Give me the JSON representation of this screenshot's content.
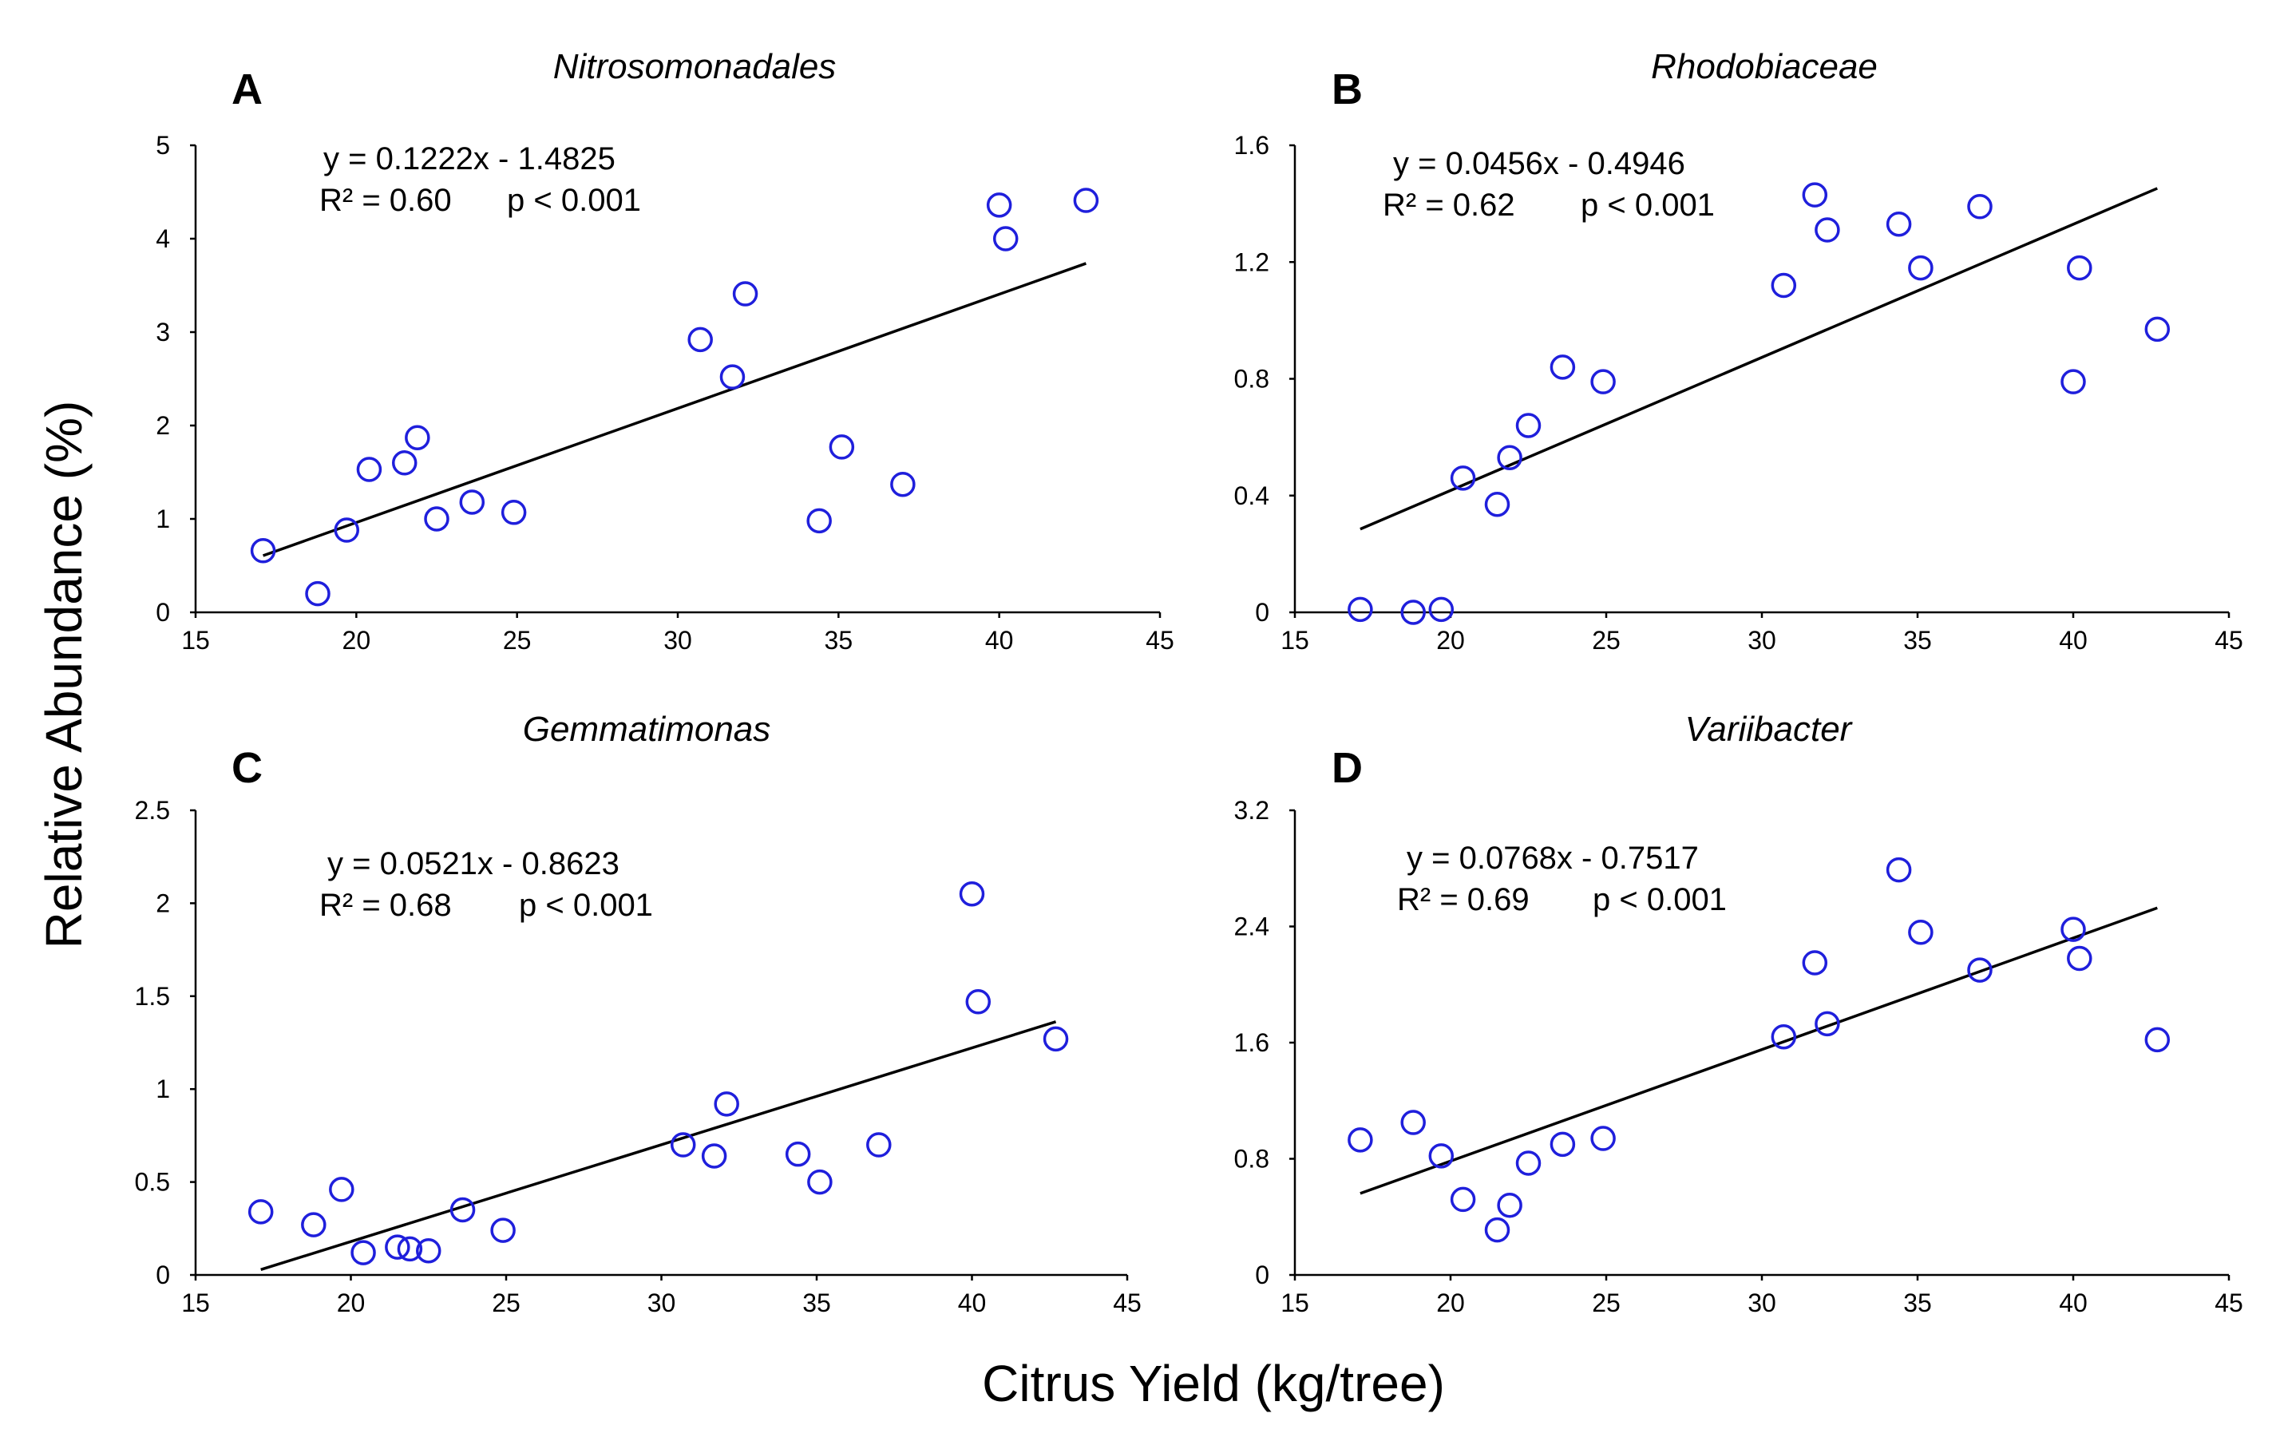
{
  "colors": {
    "marker": "#1f1fdc",
    "axis": "#000000",
    "fit_line": "#000000"
  },
  "shared_ylabel": "Relative Abundance (%)",
  "shared_xlabel": "Citrus Yield (kg/tree)",
  "chart_data": [
    {
      "type": "scatter",
      "panel": "A",
      "title": "Nitrosomonadales",
      "equation": "y = 0.1222x - 1.4825",
      "r2_text": "R² = 0.60",
      "p_text": "p < 0.001",
      "xlim": [
        15,
        45
      ],
      "ylim": [
        0,
        5
      ],
      "xticks": [
        15,
        20,
        25,
        30,
        35,
        40,
        45
      ],
      "yticks": [
        0,
        1,
        2,
        3,
        4,
        5
      ],
      "ytick_labels": [
        "0",
        "1",
        "2",
        "3",
        "4",
        "5"
      ],
      "fit": {
        "slope": 0.1222,
        "intercept": -1.4825,
        "x_range": [
          17.1,
          42.7
        ]
      },
      "points": [
        {
          "x": 17.1,
          "y": 0.66
        },
        {
          "x": 18.8,
          "y": 0.2
        },
        {
          "x": 19.7,
          "y": 0.88
        },
        {
          "x": 20.4,
          "y": 1.53
        },
        {
          "x": 21.5,
          "y": 1.6
        },
        {
          "x": 21.9,
          "y": 1.87
        },
        {
          "x": 22.5,
          "y": 1.0
        },
        {
          "x": 23.6,
          "y": 1.18
        },
        {
          "x": 24.9,
          "y": 1.07
        },
        {
          "x": 30.7,
          "y": 2.92
        },
        {
          "x": 31.7,
          "y": 2.52
        },
        {
          "x": 32.1,
          "y": 3.41
        },
        {
          "x": 34.4,
          "y": 0.98
        },
        {
          "x": 35.1,
          "y": 1.77
        },
        {
          "x": 37.0,
          "y": 1.37
        },
        {
          "x": 40.0,
          "y": 4.36
        },
        {
          "x": 40.2,
          "y": 4.0
        },
        {
          "x": 42.7,
          "y": 4.41
        }
      ]
    },
    {
      "type": "scatter",
      "panel": "B",
      "title": "Rhodobiaceae",
      "equation": "y = 0.0456x - 0.4946",
      "r2_text": "R² = 0.62",
      "p_text": "p < 0.001",
      "xlim": [
        15,
        45
      ],
      "ylim": [
        0,
        1.6
      ],
      "xticks": [
        15,
        20,
        25,
        30,
        35,
        40,
        45
      ],
      "yticks": [
        0,
        0.4,
        0.8,
        1.2,
        1.6
      ],
      "ytick_labels": [
        "0",
        "0.4",
        "0.8",
        "1.2",
        "1.6"
      ],
      "fit": {
        "slope": 0.0456,
        "intercept": -0.4946,
        "x_range": [
          17.1,
          42.7
        ]
      },
      "points": [
        {
          "x": 17.1,
          "y": 0.01
        },
        {
          "x": 18.8,
          "y": 0.0
        },
        {
          "x": 19.7,
          "y": 0.01
        },
        {
          "x": 20.4,
          "y": 0.46
        },
        {
          "x": 21.5,
          "y": 0.37
        },
        {
          "x": 21.9,
          "y": 0.53
        },
        {
          "x": 22.5,
          "y": 0.64
        },
        {
          "x": 23.6,
          "y": 0.84
        },
        {
          "x": 24.9,
          "y": 0.79
        },
        {
          "x": 30.7,
          "y": 1.12
        },
        {
          "x": 31.7,
          "y": 1.43
        },
        {
          "x": 32.1,
          "y": 1.31
        },
        {
          "x": 34.4,
          "y": 1.33
        },
        {
          "x": 35.1,
          "y": 1.18
        },
        {
          "x": 37.0,
          "y": 1.39
        },
        {
          "x": 40.0,
          "y": 0.79
        },
        {
          "x": 40.2,
          "y": 1.18
        },
        {
          "x": 42.7,
          "y": 0.97
        }
      ]
    },
    {
      "type": "scatter",
      "panel": "C",
      "title": "Gemmatimonas",
      "equation": "y = 0.0521x - 0.8623",
      "r2_text": "R² = 0.68",
      "p_text": "p < 0.001",
      "xlim": [
        15,
        45
      ],
      "ylim": [
        0,
        2.5
      ],
      "xticks": [
        15,
        20,
        25,
        30,
        35,
        40,
        45
      ],
      "yticks": [
        0,
        0.5,
        1,
        1.5,
        2,
        2.5
      ],
      "ytick_labels": [
        "0",
        "0.5",
        "1",
        "1.5",
        "2",
        "2.5"
      ],
      "fit": {
        "slope": 0.0521,
        "intercept": -0.8623,
        "x_range": [
          17.1,
          42.7
        ]
      },
      "points": [
        {
          "x": 17.1,
          "y": 0.34
        },
        {
          "x": 18.8,
          "y": 0.27
        },
        {
          "x": 19.7,
          "y": 0.46
        },
        {
          "x": 20.4,
          "y": 0.12
        },
        {
          "x": 21.5,
          "y": 0.15
        },
        {
          "x": 21.9,
          "y": 0.14
        },
        {
          "x": 22.5,
          "y": 0.13
        },
        {
          "x": 23.6,
          "y": 0.35
        },
        {
          "x": 24.9,
          "y": 0.24
        },
        {
          "x": 30.7,
          "y": 0.7
        },
        {
          "x": 31.7,
          "y": 0.64
        },
        {
          "x": 32.1,
          "y": 0.92
        },
        {
          "x": 34.4,
          "y": 0.65
        },
        {
          "x": 35.1,
          "y": 0.5
        },
        {
          "x": 37.0,
          "y": 0.7
        },
        {
          "x": 40.0,
          "y": 2.05
        },
        {
          "x": 40.2,
          "y": 1.47
        },
        {
          "x": 42.7,
          "y": 1.27
        }
      ]
    },
    {
      "type": "scatter",
      "panel": "D",
      "title": "Variibacter",
      "equation": "y = 0.0768x - 0.7517",
      "r2_text": "R² = 0.69",
      "p_text": "p < 0.001",
      "xlim": [
        15,
        45
      ],
      "ylim": [
        0,
        3.2
      ],
      "xticks": [
        15,
        20,
        25,
        30,
        35,
        40,
        45
      ],
      "yticks": [
        0,
        0.8,
        1.6,
        2.4,
        3.2
      ],
      "ytick_labels": [
        "0",
        "0.8",
        "1.6",
        "2.4",
        "3.2"
      ],
      "fit": {
        "slope": 0.0768,
        "intercept": -0.7517,
        "x_range": [
          17.1,
          42.7
        ]
      },
      "points": [
        {
          "x": 17.1,
          "y": 0.93
        },
        {
          "x": 18.8,
          "y": 1.05
        },
        {
          "x": 19.7,
          "y": 0.82
        },
        {
          "x": 20.4,
          "y": 0.52
        },
        {
          "x": 21.5,
          "y": 0.31
        },
        {
          "x": 21.9,
          "y": 0.48
        },
        {
          "x": 22.5,
          "y": 0.77
        },
        {
          "x": 23.6,
          "y": 0.9
        },
        {
          "x": 24.9,
          "y": 0.94
        },
        {
          "x": 30.7,
          "y": 1.64
        },
        {
          "x": 31.7,
          "y": 2.15
        },
        {
          "x": 32.1,
          "y": 1.73
        },
        {
          "x": 34.4,
          "y": 2.79
        },
        {
          "x": 35.1,
          "y": 2.36
        },
        {
          "x": 37.0,
          "y": 2.1
        },
        {
          "x": 40.0,
          "y": 2.38
        },
        {
          "x": 40.2,
          "y": 2.18
        },
        {
          "x": 42.7,
          "y": 1.62
        }
      ]
    }
  ]
}
